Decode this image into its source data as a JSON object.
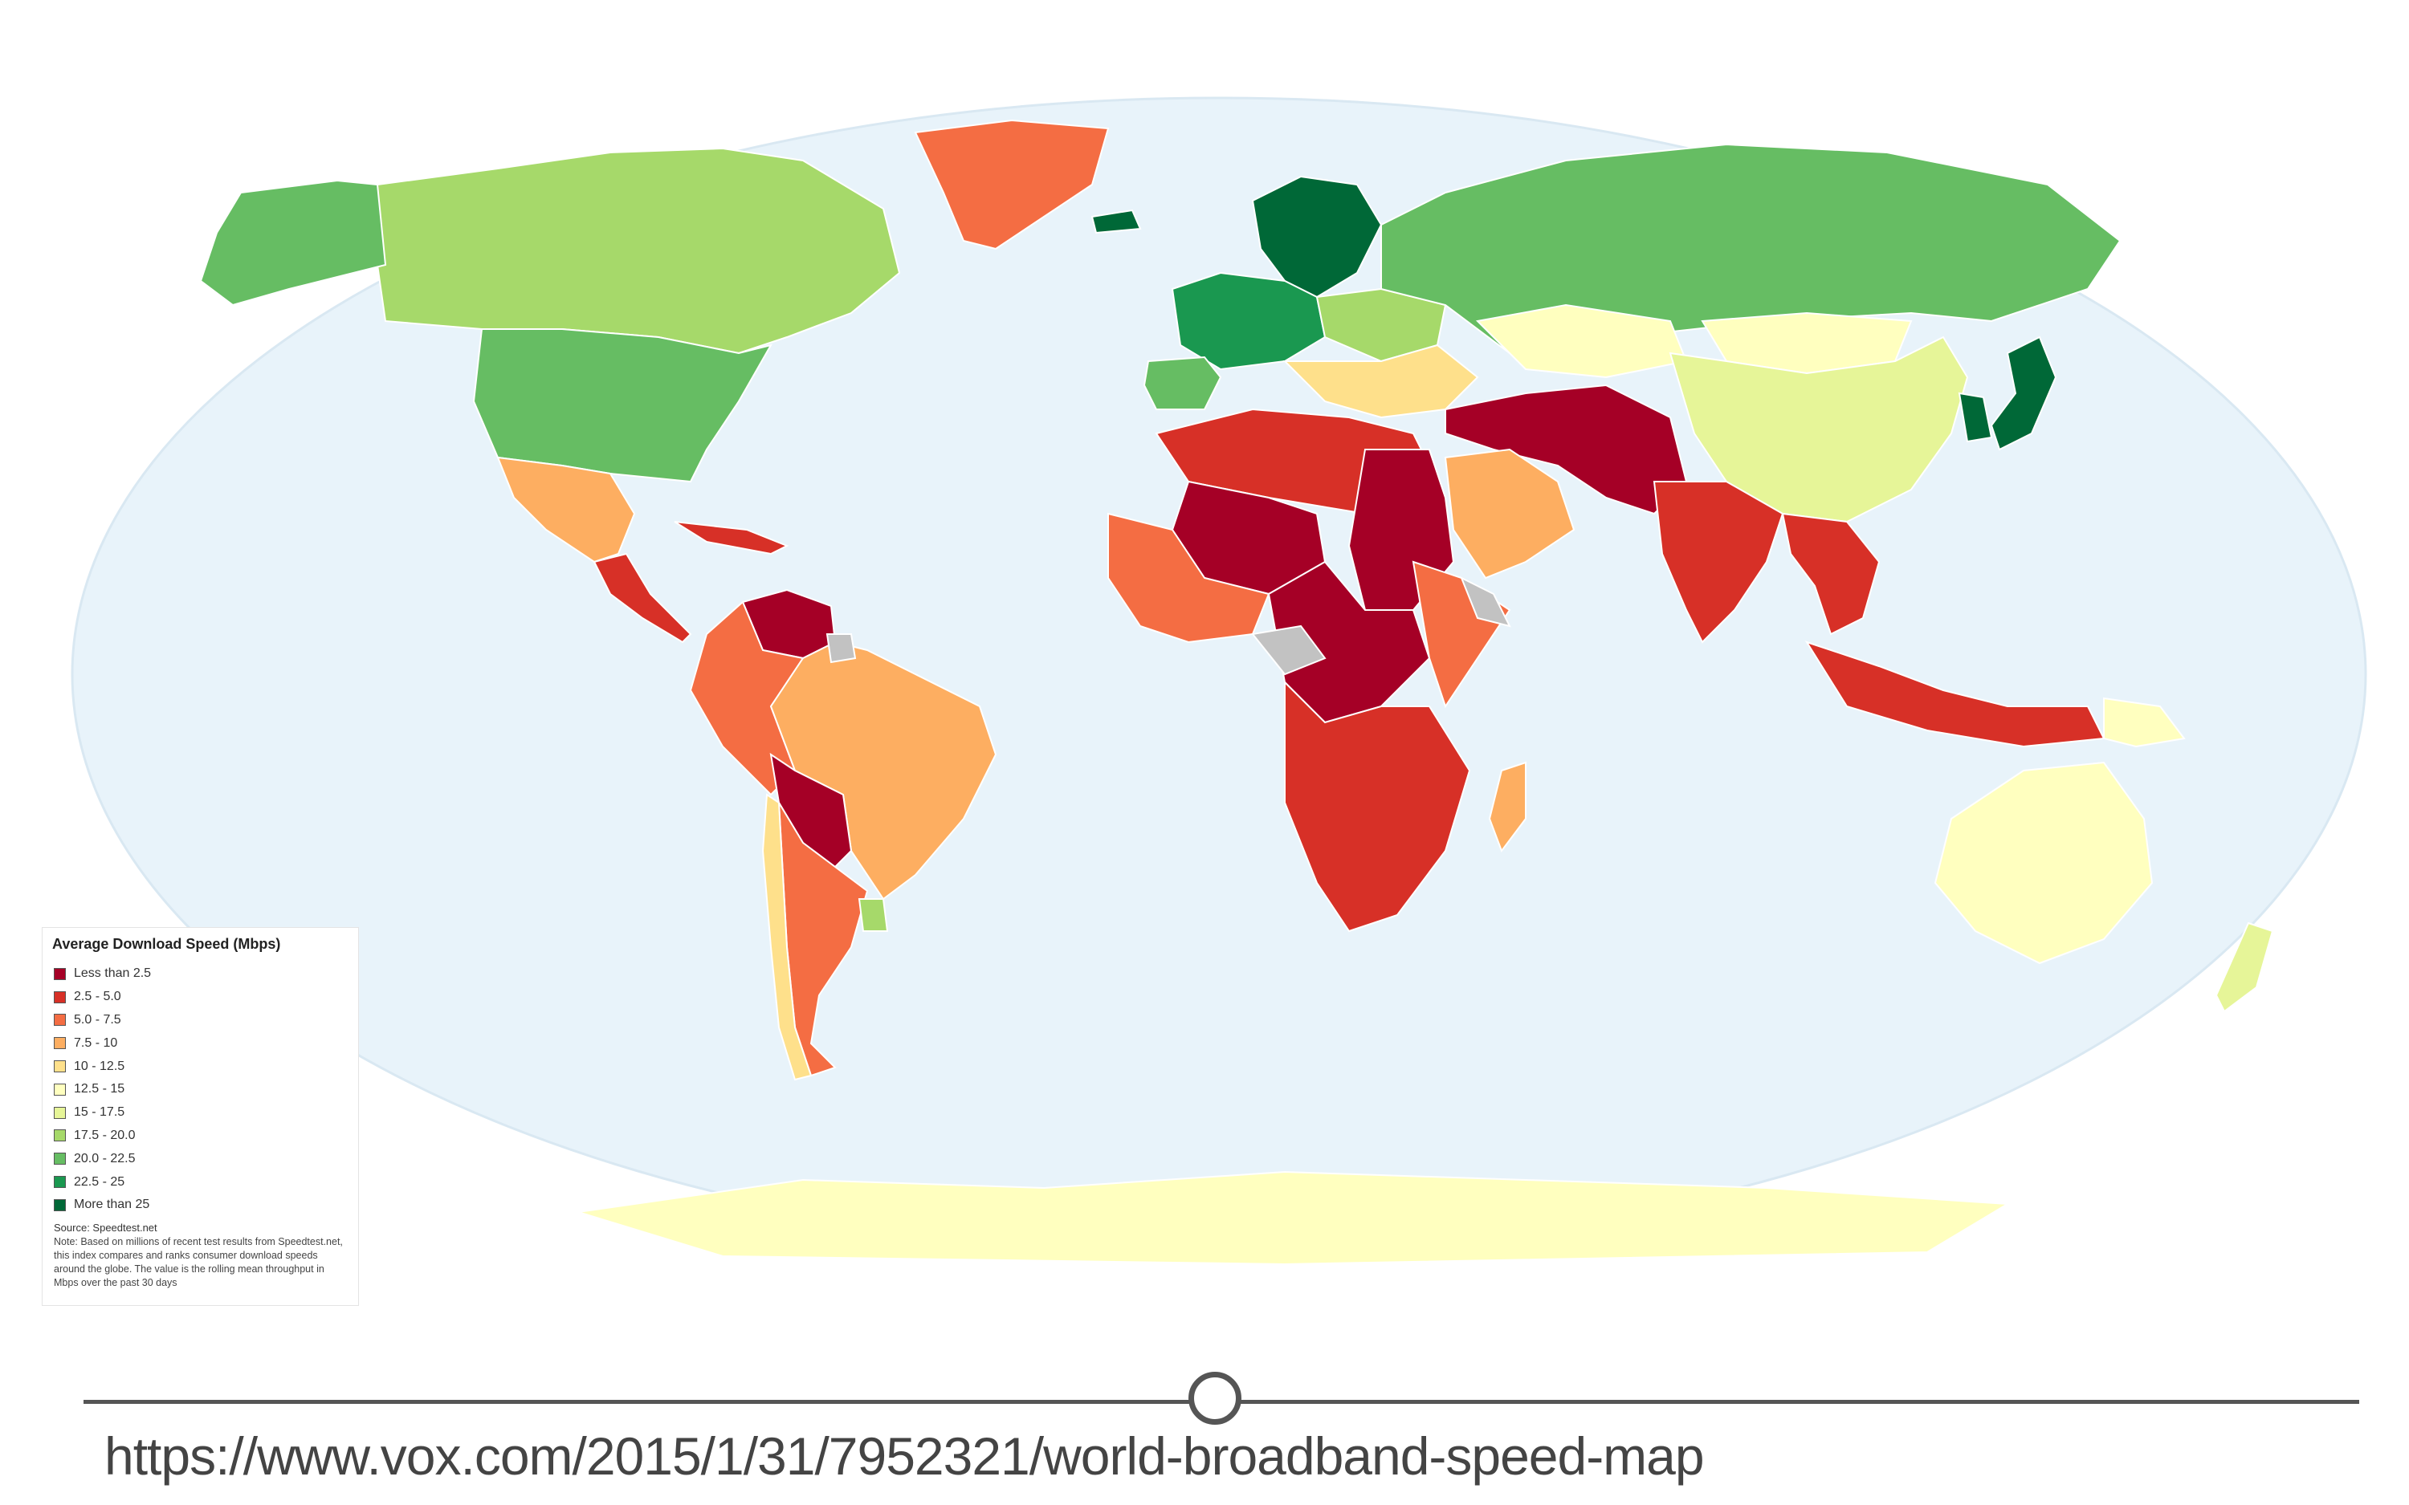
{
  "map": {
    "projection": "robinson-world",
    "ocean_color": "#e8f3fa",
    "no_data_color": "#c2c2c2",
    "regions": {
      "canada": "17.5 - 20.0",
      "usa": "20.0 - 22.5",
      "alaska": "20.0 - 22.5",
      "greenland": "5.0 - 7.5",
      "iceland": "More than 25",
      "mexico": "7.5 - 10",
      "central_america": "2.5 - 5.0",
      "caribbean": "2.5 - 5.0",
      "venezuela": "Less than 2.5",
      "colombia_peru": "5.0 - 7.5",
      "brazil": "7.5 - 10",
      "bolivia_paraguay": "Less than 2.5",
      "argentina": "5.0 - 7.5",
      "chile": "10 - 12.5",
      "uruguay": "17.5 - 20.0",
      "nordic": "More than 25",
      "western_europe": "22.5 - 25",
      "spain": "20.0 - 22.5",
      "eastern_europe": "17.5 - 20.0",
      "balkans": "10 - 12.5",
      "russia": "20.0 - 22.5",
      "kazakhstan": "12.5 - 15",
      "mongolia": "12.5 - 15",
      "china": "15 - 17.5",
      "japan": "More than 25",
      "korea": "More than 25",
      "turkey_iran_pakistan": "Less than 2.5",
      "arabia": "7.5 - 10",
      "india": "2.5 - 5.0",
      "southeast_asia": "2.5 - 5.0",
      "indonesia": "2.5 - 5.0",
      "papua_new_guinea": "12.5 - 15",
      "australia": "12.5 - 15",
      "new_zealand": "15 - 17.5",
      "north_africa": "2.5 - 5.0",
      "sahara": "Less than 2.5",
      "egypt_sudan": "Less than 2.5",
      "west_africa": "5.0 - 7.5",
      "central_africa": "Less than 2.5",
      "east_africa": "5.0 - 7.5",
      "southern_africa": "2.5 - 5.0",
      "madagascar": "7.5 - 10",
      "antarctica": "12.5 - 15"
    }
  },
  "legend": {
    "title": "Average Download Speed (Mbps)",
    "items": [
      {
        "label": "Less than 2.5",
        "color": "#a50026"
      },
      {
        "label": "2.5 - 5.0",
        "color": "#d73027"
      },
      {
        "label": "5.0 - 7.5",
        "color": "#f46d43"
      },
      {
        "label": "7.5 - 10",
        "color": "#fdae61"
      },
      {
        "label": "10 - 12.5",
        "color": "#fee08b"
      },
      {
        "label": "12.5 - 15",
        "color": "#ffffbf"
      },
      {
        "label": "15 - 17.5",
        "color": "#e6f598"
      },
      {
        "label": "17.5 - 20.0",
        "color": "#a6d96a"
      },
      {
        "label": "20.0 - 22.5",
        "color": "#66bd63"
      },
      {
        "label": "22.5 - 25",
        "color": "#1a9850"
      },
      {
        "label": "More than 25",
        "color": "#006837"
      }
    ],
    "source": "Source: Speedtest.net",
    "note": "Note: Based on millions of recent test results from Speedtest.net, this index compares and ranks consumer download speeds around the globe. The value is the rolling mean throughput in Mbps over the past 30 days"
  },
  "footer": {
    "url": "https://www.vox.com/2015/1/31/7952321/world-broadband-speed-map"
  }
}
